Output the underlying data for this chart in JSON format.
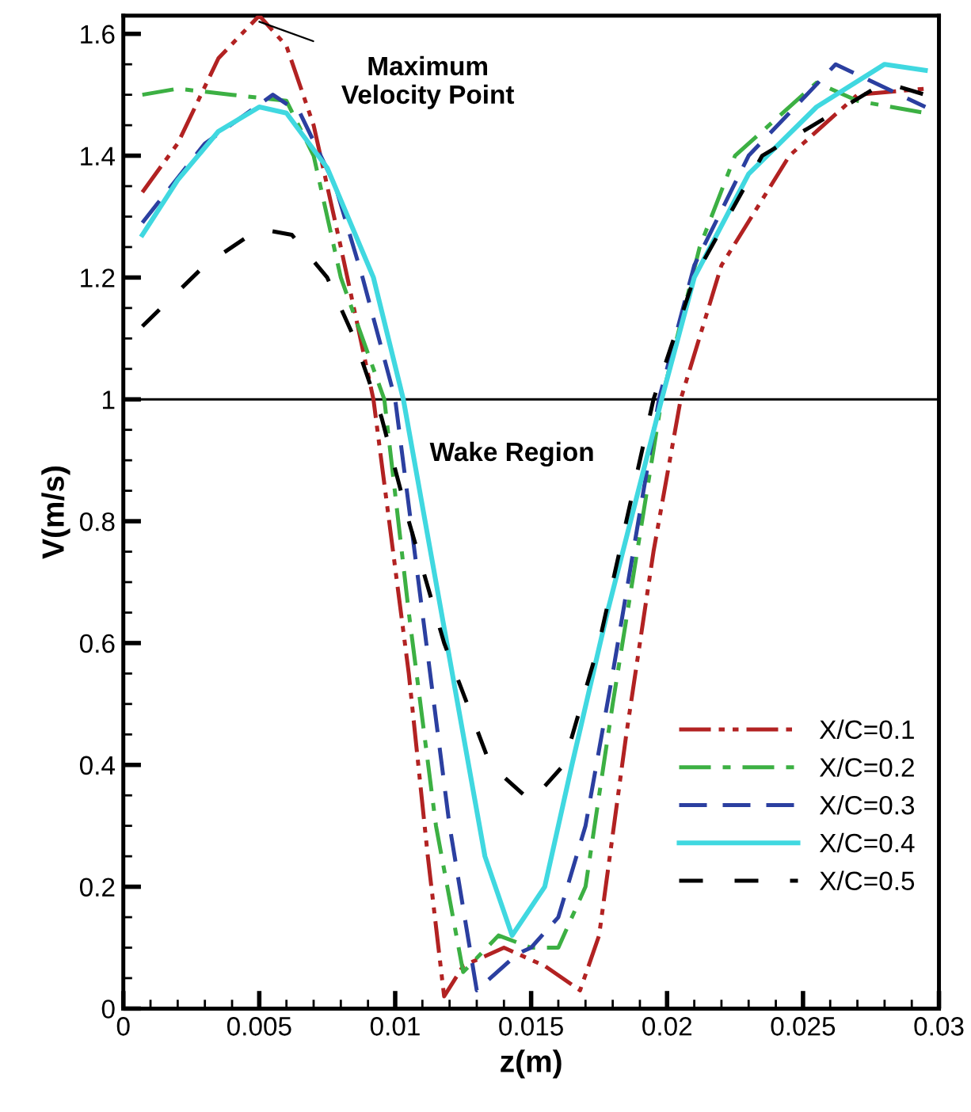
{
  "chart_data": {
    "type": "line",
    "xlabel": "z(m)",
    "ylabel": "V(m/s)",
    "xlim": [
      0,
      0.03
    ],
    "ylim": [
      0,
      1.63
    ],
    "xticks": [
      0,
      0.005,
      0.01,
      0.015,
      0.02,
      0.025,
      0.03
    ],
    "yticks": [
      0,
      0.2,
      0.4,
      0.6,
      0.8,
      1,
      1.2,
      1.4,
      1.6
    ],
    "grid": false,
    "legend": "bottom right",
    "marker": "none",
    "ref_lines": [
      {
        "axis": "y",
        "value": 1,
        "color": "#000000",
        "line_style": "solid"
      }
    ],
    "annotations": [
      {
        "text": "Maximum\nVelocity Point",
        "x": 0.005,
        "y": 1.62
      },
      "Wake Region"
    ],
    "series": [
      {
        "name": "X/C=0.1",
        "color": "#b22222",
        "line_style": "dashdotdot",
        "x": [
          0.0007,
          0.002,
          0.0035,
          0.005,
          0.006,
          0.007,
          0.008,
          0.0092,
          0.0105,
          0.0112,
          0.0118,
          0.0125,
          0.014,
          0.0155,
          0.0168,
          0.0175,
          0.0185,
          0.0195,
          0.0205,
          0.022,
          0.0245,
          0.027,
          0.0295
        ],
        "values": [
          1.34,
          1.42,
          1.56,
          1.63,
          1.58,
          1.45,
          1.25,
          1.0,
          0.55,
          0.25,
          0.02,
          0.07,
          0.1,
          0.07,
          0.03,
          0.12,
          0.45,
          0.75,
          1.0,
          1.22,
          1.4,
          1.5,
          1.51
        ]
      },
      {
        "name": "X/C=0.2",
        "color": "#3cb043",
        "line_style": "dashdot",
        "x": [
          0.0007,
          0.002,
          0.004,
          0.006,
          0.007,
          0.008,
          0.0096,
          0.0105,
          0.0115,
          0.0125,
          0.0138,
          0.015,
          0.016,
          0.017,
          0.018,
          0.0198,
          0.0212,
          0.0225,
          0.0255,
          0.027,
          0.0295
        ],
        "values": [
          1.5,
          1.51,
          1.5,
          1.49,
          1.4,
          1.2,
          1.0,
          0.65,
          0.3,
          0.06,
          0.12,
          0.1,
          0.1,
          0.2,
          0.5,
          1.0,
          1.25,
          1.4,
          1.52,
          1.49,
          1.47
        ]
      },
      {
        "name": "X/C=0.3",
        "color": "#2b3fa0",
        "line_style": "dashed",
        "x": [
          0.0007,
          0.003,
          0.0055,
          0.0065,
          0.0078,
          0.0088,
          0.01,
          0.011,
          0.012,
          0.013,
          0.0145,
          0.015,
          0.016,
          0.017,
          0.018,
          0.0197,
          0.021,
          0.023,
          0.0262,
          0.0295
        ],
        "values": [
          1.29,
          1.42,
          1.5,
          1.47,
          1.35,
          1.2,
          1.0,
          0.65,
          0.3,
          0.03,
          0.09,
          0.1,
          0.15,
          0.3,
          0.55,
          1.0,
          1.22,
          1.4,
          1.55,
          1.48
        ]
      },
      {
        "name": "X/C=0.4",
        "color": "#40d8e0",
        "line_style": "solid",
        "x": [
          0.0007,
          0.002,
          0.0035,
          0.005,
          0.006,
          0.0075,
          0.0092,
          0.0103,
          0.0113,
          0.0123,
          0.0133,
          0.0143,
          0.0155,
          0.0165,
          0.0178,
          0.0198,
          0.021,
          0.023,
          0.0255,
          0.028,
          0.0295
        ],
        "values": [
          1.27,
          1.36,
          1.44,
          1.48,
          1.47,
          1.38,
          1.2,
          1.0,
          0.75,
          0.5,
          0.25,
          0.12,
          0.2,
          0.4,
          0.65,
          1.0,
          1.2,
          1.37,
          1.48,
          1.55,
          1.54
        ]
      },
      {
        "name": "X/C=0.5",
        "color": "#000000",
        "line_style": "loosely dashed",
        "x": [
          0.0007,
          0.003,
          0.005,
          0.0062,
          0.0075,
          0.0085,
          0.0095,
          0.0105,
          0.0118,
          0.0135,
          0.015,
          0.0162,
          0.0175,
          0.0185,
          0.0195,
          0.021,
          0.0235,
          0.028,
          0.0295
        ],
        "values": [
          1.12,
          1.22,
          1.28,
          1.27,
          1.2,
          1.1,
          0.97,
          0.8,
          0.6,
          0.4,
          0.34,
          0.4,
          0.6,
          0.8,
          1.0,
          1.2,
          1.4,
          1.52,
          1.5
        ]
      }
    ]
  }
}
